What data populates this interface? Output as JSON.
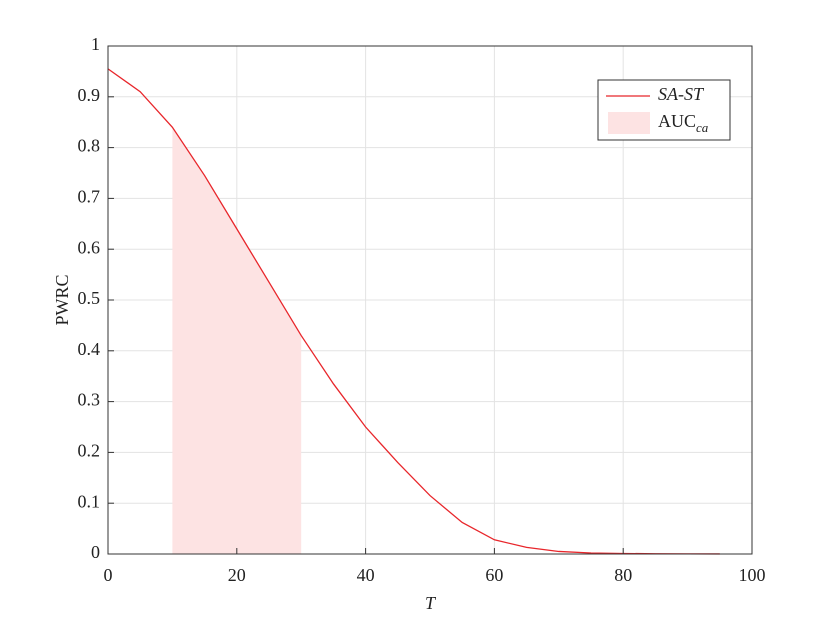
{
  "chart_data": {
    "type": "line",
    "xlabel": "T",
    "ylabel": "PWRC",
    "xlim": [
      0,
      100
    ],
    "ylim": [
      0,
      1
    ],
    "xticks": [
      0,
      20,
      40,
      60,
      80,
      100
    ],
    "yticks": [
      0,
      0.1,
      0.2,
      0.3,
      0.4,
      0.5,
      0.6,
      0.7,
      0.8,
      0.9,
      1
    ],
    "grid": true,
    "legend": "upper right",
    "series": [
      {
        "name": "SA-ST",
        "color": "#e8262b",
        "x": [
          0,
          5,
          10,
          15,
          20,
          25,
          30,
          35,
          40,
          45,
          50,
          55,
          60,
          65,
          70,
          75,
          80,
          85,
          90,
          95
        ],
        "values": [
          0.955,
          0.91,
          0.84,
          0.745,
          0.64,
          0.535,
          0.43,
          0.335,
          0.25,
          0.18,
          0.115,
          0.062,
          0.028,
          0.013,
          0.005,
          0.002,
          0.001,
          0.0005,
          0.0002,
          0.0001
        ]
      },
      {
        "name": "AUC",
        "name_subscript": "ca",
        "type": "area",
        "color": "#fde3e3",
        "x": [
          10,
          15,
          20,
          25,
          30
        ],
        "values": [
          0.84,
          0.745,
          0.64,
          0.535,
          0.43
        ]
      }
    ]
  }
}
